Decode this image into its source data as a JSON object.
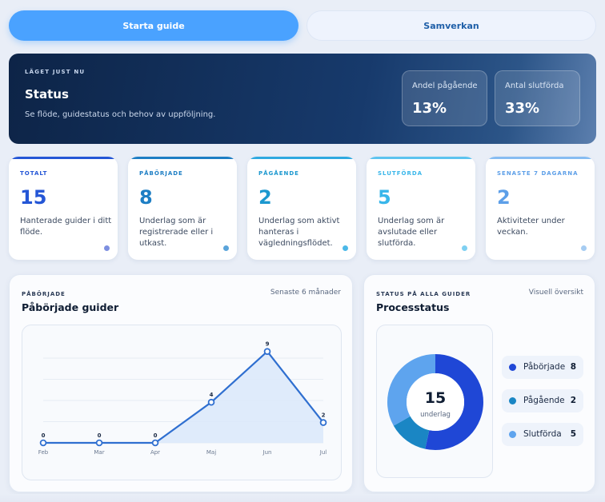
{
  "actions": {
    "start_label": "Starta guide",
    "collab_label": "Samverkan"
  },
  "hero": {
    "eyebrow": "LÄGET JUST NU",
    "title": "Status",
    "subtitle": "Se flöde, guidestatus och behov av uppföljning.",
    "stats": [
      {
        "label": "Andel pågående",
        "value": "13%"
      },
      {
        "label": "Antal slutförda",
        "value": "33%"
      }
    ]
  },
  "cards": [
    {
      "label": "TOTALT",
      "value": "15",
      "desc": "Hanterade guider i ditt flöde.",
      "color": "#2456d6",
      "bar": "#2456d6",
      "dot": "#7d8fe0"
    },
    {
      "label": "PÅBÖRJADE",
      "value": "8",
      "desc": "Underlag som är registrerade eller i utkast.",
      "color": "#1d7ec4",
      "bar": "#1d7ec4",
      "dot": "#5aa4da"
    },
    {
      "label": "PÅGÅENDE",
      "value": "2",
      "desc": "Underlag som aktivt hanteras i vägledningsflödet.",
      "color": "#1c98cf",
      "bar": "#2fa9e0",
      "dot": "#4bb8e8"
    },
    {
      "label": "SLUTFÖRDA",
      "value": "5",
      "desc": "Underlag som är avslutade eller slutförda.",
      "color": "#38b6ea",
      "bar": "#5cc3ef",
      "dot": "#7fd0f2"
    },
    {
      "label": "SENASTE 7 DAGARNA",
      "value": "2",
      "desc": "Aktiviteter under veckan.",
      "color": "#5d9fe8",
      "bar": "#86bcf2",
      "dot": "#a6ccf2"
    }
  ],
  "line_panel": {
    "eyebrow": "PÅBÖRJADE",
    "title": "Påbörjade guider",
    "meta": "Senaste 6 månader"
  },
  "donut_panel": {
    "eyebrow": "STATUS PÅ ALLA GUIDER",
    "title": "Processtatus",
    "meta": "Visuell översikt",
    "center_value": "15",
    "center_label": "underlag",
    "legend": [
      {
        "name": "Påbörjade",
        "value": "8",
        "color": "#1f47d6"
      },
      {
        "name": "Pågående",
        "value": "2",
        "color": "#1a86c4"
      },
      {
        "name": "Slutförda",
        "value": "5",
        "color": "#5ea4ee"
      }
    ]
  },
  "chart_data": [
    {
      "type": "line",
      "categories": [
        "Feb",
        "Mar",
        "Apr",
        "Maj",
        "Jun",
        "Jul"
      ],
      "values": [
        0,
        0,
        0,
        4,
        9,
        2
      ],
      "ylim": [
        0,
        10
      ],
      "grid": true,
      "color": "#2f6fd0"
    },
    {
      "type": "pie",
      "categories": [
        "Påbörjade",
        "Pågående",
        "Slutförda"
      ],
      "values": [
        8,
        2,
        5
      ],
      "colors": [
        "#1f47d6",
        "#1a86c4",
        "#5ea4ee"
      ]
    }
  ]
}
